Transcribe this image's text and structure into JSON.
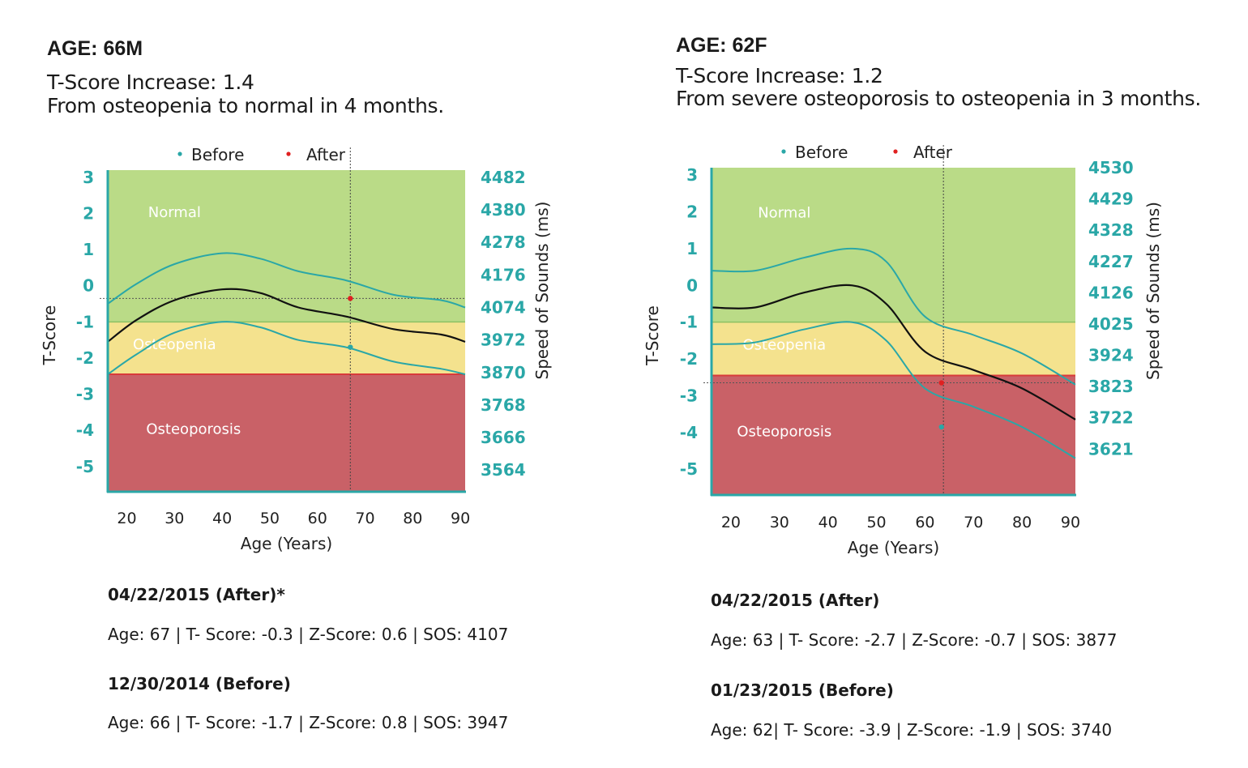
{
  "panels": [
    {
      "age_title": "AGE: 66M",
      "increase": "T-Score Increase: 1.4",
      "summary": "From osteopenia to normal in 4 months.",
      "records": [
        {
          "heading": "04/22/2015 (After)*",
          "detail": "Age: 67 | T- Score: -0.3 | Z-Score: 0.6 | SOS: 4107"
        },
        {
          "heading": "12/30/2014 (Before)",
          "detail": "Age: 66 | T- Score: -1.7 | Z-Score: 0.8 | SOS: 3947"
        }
      ]
    },
    {
      "age_title": "AGE: 62F",
      "increase": "T-Score Increase: 1.2",
      "summary": "From severe osteoporosis to osteopenia in 3 months.",
      "records": [
        {
          "heading": "04/22/2015 (After)",
          "detail": "Age: 63 | T- Score: -2.7 | Z-Score: -0.7 | SOS: 3877"
        },
        {
          "heading": "01/23/2015 (Before)",
          "detail": "Age: 62| T- Score: -3.9 | Z-Score: -1.9 | SOS: 3740"
        }
      ]
    }
  ],
  "colors": {
    "normal": "#badb87",
    "osteopenia": "#f4e28e",
    "osteoporosis": "#c96167",
    "teal": "#2aa7a7",
    "red_point": "#e02020",
    "median": "#111111",
    "normal_line": "#8cc063",
    "osteoporosis_line": "#d83a3a"
  },
  "chart_data": [
    {
      "type": "line",
      "legend": [
        "Before",
        "After"
      ],
      "xlabel": "Age (Years)",
      "ylabel": "T-Score",
      "y2label": "Speed of Sounds (ms)",
      "xlim": [
        16,
        91
      ],
      "ylim": [
        -5.7,
        3.2
      ],
      "x_ticks": [
        20,
        30,
        40,
        50,
        60,
        70,
        80,
        90
      ],
      "y_ticks": [
        3,
        2,
        1,
        0,
        -1,
        -2,
        -3,
        -4,
        -5
      ],
      "y2_ticks": [
        {
          "t": 3,
          "label": "4482"
        },
        {
          "t": 2.1,
          "label": "4380"
        },
        {
          "t": 1.2,
          "label": "4278"
        },
        {
          "t": 0.3,
          "label": "4176"
        },
        {
          "t": -0.6,
          "label": "4074"
        },
        {
          "t": -1.5,
          "label": "3972"
        },
        {
          "t": -2.4,
          "label": "3870"
        },
        {
          "t": -3.3,
          "label": "3768"
        },
        {
          "t": -4.2,
          "label": "3666"
        },
        {
          "t": -5.1,
          "label": "3564"
        }
      ],
      "zones": [
        {
          "name": "Normal",
          "from": -1,
          "to": 3.2,
          "label_x": 30,
          "label_y": 1.9
        },
        {
          "name": "Osteopenia",
          "from": -2.45,
          "to": -1,
          "label_x": 30,
          "label_y": -1.75
        },
        {
          "name": "Osteoporosis",
          "from": -5.7,
          "to": -2.45,
          "label_x": 34,
          "label_y": -4.1
        }
      ],
      "curves": {
        "upper": {
          "x": [
            16,
            22,
            30,
            40,
            48,
            56,
            66,
            76,
            86,
            91
          ],
          "y": [
            -0.5,
            0.05,
            0.6,
            0.9,
            0.75,
            0.4,
            0.15,
            -0.25,
            -0.4,
            -0.6
          ]
        },
        "median": {
          "x": [
            16,
            22,
            30,
            40,
            48,
            56,
            66,
            76,
            86,
            91
          ],
          "y": [
            -1.55,
            -0.95,
            -0.4,
            -0.1,
            -0.2,
            -0.6,
            -0.85,
            -1.2,
            -1.35,
            -1.55
          ]
        },
        "lower": {
          "x": [
            16,
            22,
            30,
            40,
            48,
            56,
            66,
            76,
            86,
            91
          ],
          "y": [
            -2.45,
            -1.9,
            -1.3,
            -1.0,
            -1.15,
            -1.5,
            -1.7,
            -2.1,
            -2.3,
            -2.45
          ]
        }
      },
      "before": {
        "age": 66.9,
        "t": -1.7
      },
      "after": {
        "age": 66.9,
        "t": -0.35
      },
      "ref_x": 66.9,
      "ref_y": -0.35
    },
    {
      "type": "line",
      "legend": [
        "Before",
        "After"
      ],
      "xlabel": "Age (Years)",
      "ylabel": "T-Score",
      "y2label": "Speed of Sounds (ms)",
      "xlim": [
        16,
        91
      ],
      "ylim": [
        -5.7,
        3.2
      ],
      "x_ticks": [
        20,
        30,
        40,
        50,
        60,
        70,
        80,
        90
      ],
      "y_ticks": [
        3,
        2,
        1,
        0,
        -1,
        -2,
        -3,
        -4,
        -5
      ],
      "y2_ticks": [
        {
          "t": 3.2,
          "label": "4530"
        },
        {
          "t": 2.35,
          "label": "4429"
        },
        {
          "t": 1.5,
          "label": "4328"
        },
        {
          "t": 0.65,
          "label": "4227"
        },
        {
          "t": -0.2,
          "label": "4126"
        },
        {
          "t": -1.05,
          "label": "4025"
        },
        {
          "t": -1.9,
          "label": "3924"
        },
        {
          "t": -2.75,
          "label": "3823"
        },
        {
          "t": -3.6,
          "label": "3722"
        },
        {
          "t": -4.45,
          "label": "3621"
        }
      ],
      "zones": [
        {
          "name": "Normal",
          "from": -1,
          "to": 3.2,
          "label_x": 31,
          "label_y": 1.85
        },
        {
          "name": "Osteopenia",
          "from": -2.45,
          "to": -1,
          "label_x": 31,
          "label_y": -1.75
        },
        {
          "name": "Osteoporosis",
          "from": -5.7,
          "to": -2.45,
          "label_x": 31,
          "label_y": -4.1
        }
      ],
      "curves": {
        "upper": {
          "x": [
            16,
            25,
            35,
            45,
            52,
            60,
            70,
            80,
            91
          ],
          "y": [
            0.4,
            0.4,
            0.75,
            1.0,
            0.65,
            -0.85,
            -1.35,
            -1.85,
            -2.7
          ]
        },
        "median": {
          "x": [
            16,
            25,
            35,
            45,
            52,
            60,
            70,
            80,
            91
          ],
          "y": [
            -0.6,
            -0.6,
            -0.2,
            0.0,
            -0.5,
            -1.8,
            -2.3,
            -2.8,
            -3.65
          ]
        },
        "lower": {
          "x": [
            16,
            25,
            35,
            45,
            52,
            60,
            70,
            80,
            91
          ],
          "y": [
            -1.6,
            -1.55,
            -1.2,
            -1.0,
            -1.5,
            -2.8,
            -3.3,
            -3.85,
            -4.7
          ]
        }
      },
      "before": {
        "age": 63.4,
        "t": -3.85
      },
      "after": {
        "age": 63.4,
        "t": -2.65
      },
      "ref_x": 63.8,
      "ref_y": -2.65
    }
  ]
}
